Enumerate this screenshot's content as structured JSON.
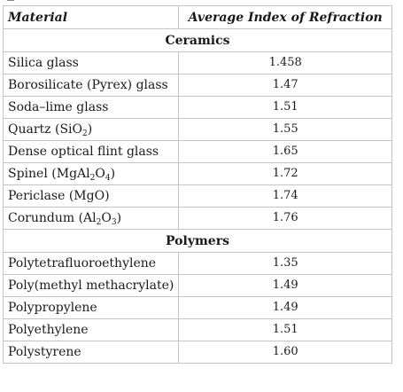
{
  "table": {
    "headers": {
      "material": "Material",
      "index": "Average Index of Refraction"
    },
    "sections": [
      {
        "title": "Ceramics",
        "rows": [
          {
            "material": "Silica glass",
            "value": "1.458"
          },
          {
            "material": "Borosilicate (Pyrex) glass",
            "value": "1.47"
          },
          {
            "material": "Soda–lime glass",
            "value": "1.51"
          },
          {
            "material": "Quartz (SiO2)",
            "value": "1.55"
          },
          {
            "material": "Dense optical flint glass",
            "value": "1.65"
          },
          {
            "material": "Spinel (MgAl2O4)",
            "value": "1.72"
          },
          {
            "material": "Periclase (MgO)",
            "value": "1.74"
          },
          {
            "material": "Corundum (Al2O3)",
            "value": "1.76"
          }
        ]
      },
      {
        "title": "Polymers",
        "rows": [
          {
            "material": "Polytetrafluoroethylene",
            "value": "1.35"
          },
          {
            "material": "Poly(methyl methacrylate)",
            "value": "1.49"
          },
          {
            "material": "Polypropylene",
            "value": "1.49"
          },
          {
            "material": "Polyethylene",
            "value": "1.51"
          },
          {
            "material": "Polystyrene",
            "value": "1.60"
          }
        ]
      }
    ]
  }
}
